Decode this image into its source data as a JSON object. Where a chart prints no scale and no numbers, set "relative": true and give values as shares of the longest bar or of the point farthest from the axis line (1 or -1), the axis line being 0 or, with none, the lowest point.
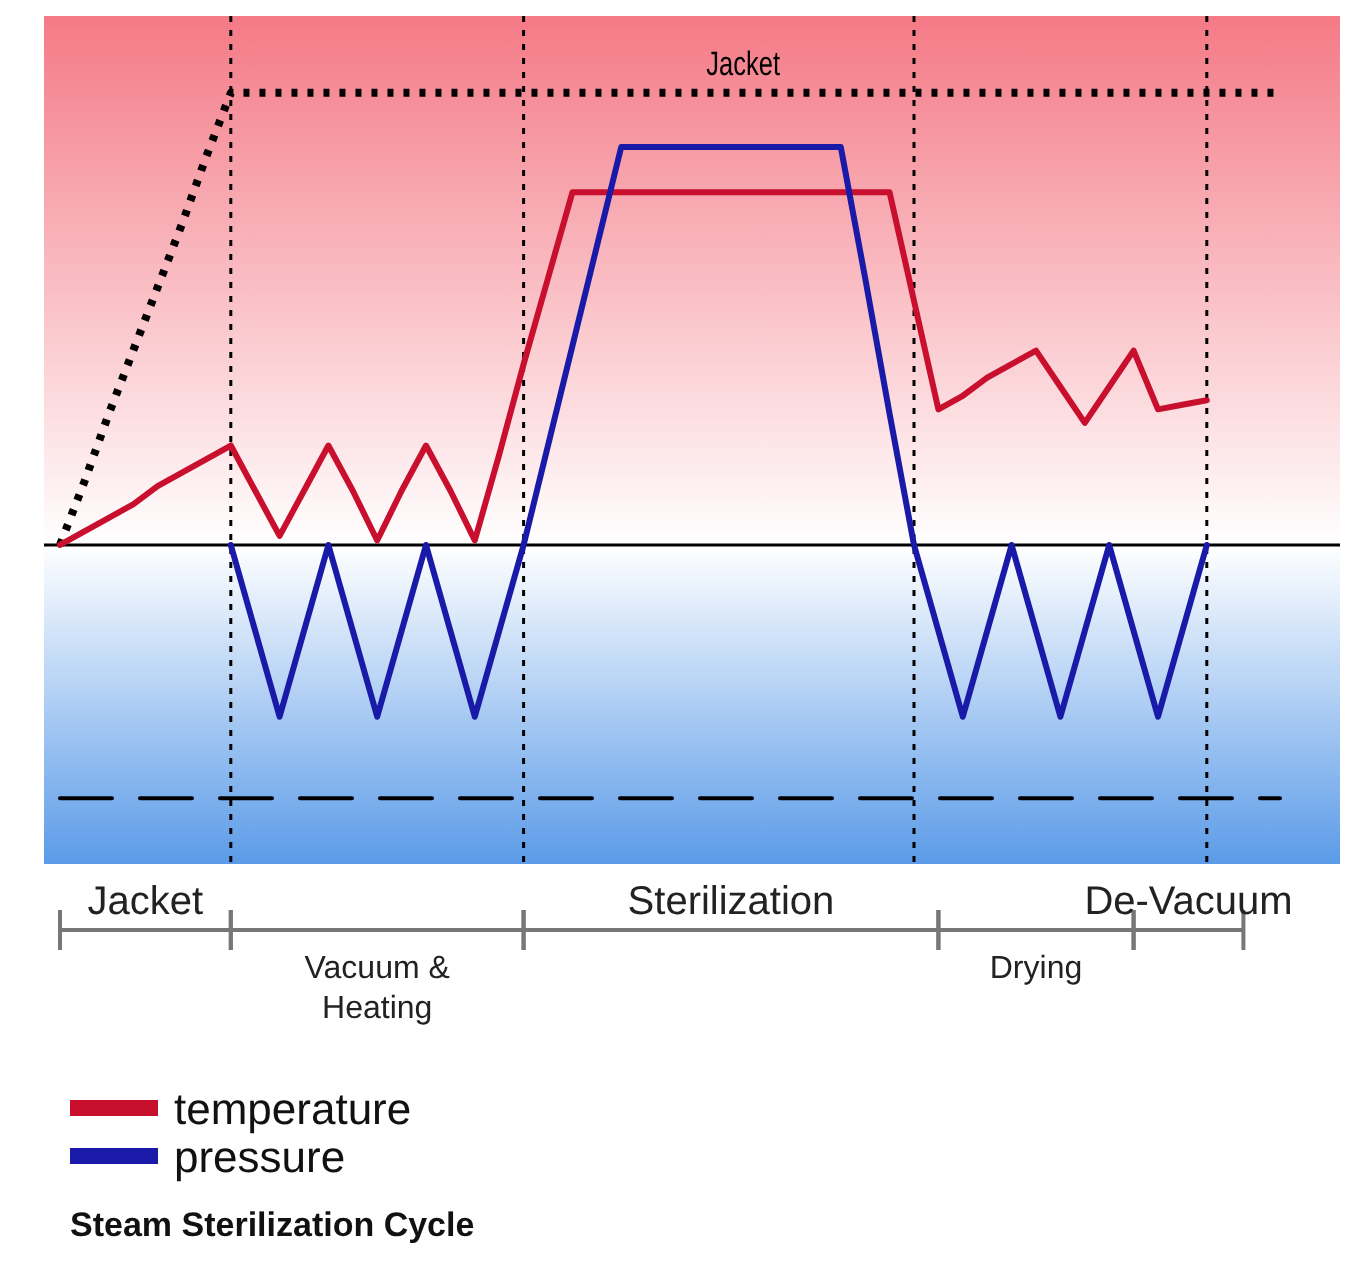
{
  "chart_data": {
    "type": "line",
    "relative": true,
    "title": "Steam Sterilization Cycle",
    "legend": "bottom left",
    "categories": [
      null,
      null,
      null,
      null,
      null,
      null,
      null,
      null,
      null,
      null,
      null,
      null,
      null,
      null,
      null,
      null,
      null,
      null,
      null,
      null,
      null,
      null,
      null,
      null,
      null,
      null,
      null,
      null,
      null,
      null,
      null,
      null,
      null,
      null,
      null,
      null,
      null,
      null,
      null,
      null,
      null,
      null,
      null,
      null,
      null,
      null,
      null,
      null,
      null,
      null,
      null
    ],
    "series": [
      {
        "name": "Jacket",
        "color": "#000000",
        "line_style": "dotted",
        "values": [
          0,
          0.14,
          0.29,
          0.43,
          0.57,
          0.71,
          0.86,
          1,
          1,
          1,
          1,
          1,
          1,
          1,
          1,
          1,
          1,
          1,
          1,
          1,
          1,
          1,
          1,
          1,
          1,
          1,
          1,
          1,
          1,
          1,
          1,
          1,
          1,
          1,
          1,
          1,
          1,
          1,
          1,
          1,
          1,
          1,
          1,
          1,
          1,
          1,
          1,
          1,
          1,
          1,
          1
        ]
      },
      {
        "color": "#000000",
        "line_style": "dashed",
        "values": [
          -0.56,
          -0.56,
          -0.56,
          -0.56,
          -0.56,
          -0.56,
          -0.56,
          -0.56,
          -0.56,
          -0.56,
          -0.56,
          -0.56,
          -0.56,
          -0.56,
          -0.56,
          -0.56,
          -0.56,
          -0.56,
          -0.56,
          -0.56,
          -0.56,
          -0.56,
          -0.56,
          -0.56,
          -0.56,
          -0.56,
          -0.56,
          -0.56,
          -0.56,
          -0.56,
          -0.56,
          -0.56,
          -0.56,
          -0.56,
          -0.56,
          -0.56,
          -0.56,
          -0.56,
          -0.56,
          -0.56,
          -0.56,
          -0.56,
          -0.56,
          -0.56,
          -0.56,
          -0.56,
          -0.56,
          -0.56,
          -0.56,
          -0.56,
          -0.56
        ]
      },
      {
        "name": "temperature",
        "color": "#c8102e",
        "line_style": "solid",
        "values": [
          0,
          0.03,
          0.06,
          0.09,
          0.13,
          0.16,
          0.19,
          0.22,
          0.12,
          0.02,
          0.12,
          0.22,
          0.12,
          0.01,
          0.12,
          0.22,
          0.12,
          0.01,
          0.2,
          0.4,
          0.59,
          0.78,
          0.78,
          0.78,
          0.78,
          0.78,
          0.78,
          0.78,
          0.78,
          0.78,
          0.78,
          0.78,
          0.78,
          0.78,
          0.78,
          0.54,
          0.3,
          0.33,
          0.37,
          0.4,
          0.43,
          0.35,
          0.27,
          0.35,
          0.43,
          0.3,
          0.31,
          0.32,
          null,
          null,
          null
        ]
      },
      {
        "name": "pressure",
        "color": "#1a1aa8",
        "line_style": "solid",
        "values": [
          null,
          null,
          null,
          null,
          null,
          null,
          null,
          0,
          -0.19,
          -0.38,
          -0.19,
          0,
          -0.19,
          -0.38,
          -0.19,
          0,
          -0.19,
          -0.38,
          -0.19,
          0,
          0.22,
          0.44,
          0.66,
          0.88,
          0.88,
          0.88,
          0.88,
          0.88,
          0.88,
          0.88,
          0.88,
          0.88,
          0.88,
          0.59,
          0.29,
          0,
          -0.19,
          -0.38,
          -0.19,
          0,
          -0.19,
          -0.38,
          -0.19,
          0,
          -0.19,
          -0.38,
          -0.19,
          0,
          null,
          null,
          null
        ]
      }
    ],
    "annotations": [
      "Jacket",
      "Vacuum & Heating",
      "Sterilization",
      "Drying",
      "De-Vacuum"
    ]
  }
}
